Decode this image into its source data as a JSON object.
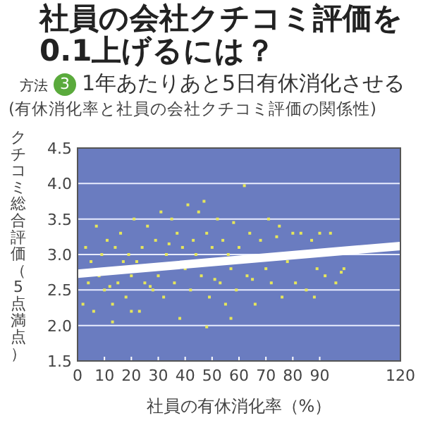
{
  "chart_data": {
    "type": "scatter",
    "title": "社員の会社クチコミ評価を0.1上げるには？",
    "subtitle": "方法 3 1年あたりあと5日有休消化させる",
    "annotations": [
      "(有休消化率と社員の会社クチコミ評価の関係性)"
    ],
    "xlabel": "社員の有休消化率（%）",
    "ylabel": "クチコミ総合評価（5点満点）",
    "xlim": [
      0,
      120
    ],
    "xticks": [
      0,
      10,
      20,
      30,
      40,
      50,
      60,
      70,
      80,
      90,
      120
    ],
    "ylim": [
      1.5,
      4.5
    ],
    "yticks": [
      1.5,
      {
        "value": 2,
        "label": "2.0"
      },
      2.5,
      {
        "value": 3,
        "label": "3.0"
      },
      3.5,
      {
        "value": 4,
        "label": "4.0"
      },
      4.5
    ],
    "grid": "y",
    "series": [
      {
        "color": "#e6e65a",
        "x": [
          2,
          3,
          4,
          5,
          6,
          7,
          8,
          9,
          10,
          11,
          12,
          13,
          14,
          15,
          16,
          17,
          18,
          19,
          20,
          21,
          22,
          23,
          24,
          25,
          26,
          27,
          28,
          29,
          30,
          31,
          32,
          33,
          34,
          35,
          36,
          37,
          38,
          39,
          40,
          41,
          42,
          43,
          44,
          45,
          46,
          47,
          48,
          49,
          50,
          51,
          52,
          53,
          54,
          55,
          56,
          57,
          58,
          59,
          60,
          62,
          63,
          64,
          65,
          66,
          68,
          70,
          71,
          72,
          74,
          75,
          76,
          78,
          80,
          81,
          83,
          85,
          87,
          88,
          89,
          90,
          92,
          94,
          96,
          98,
          99,
          48,
          13,
          57,
          20
        ],
        "values": [
          2.3,
          3.1,
          2.6,
          2.9,
          2.2,
          3.4,
          2.7,
          3.0,
          2.5,
          3.2,
          2.55,
          2.3,
          3.1,
          2.6,
          3.3,
          2.9,
          2.4,
          3.0,
          2.7,
          3.5,
          2.9,
          2.2,
          3.1,
          2.6,
          3.4,
          2.55,
          2.5,
          3.2,
          2.7,
          3.6,
          2.4,
          3.0,
          3.15,
          3.5,
          2.6,
          3.3,
          2.1,
          3.1,
          2.8,
          3.7,
          2.5,
          3.2,
          3.0,
          3.6,
          2.7,
          3.75,
          3.3,
          2.4,
          3.1,
          2.65,
          3.5,
          2.6,
          3.2,
          2.3,
          3.0,
          2.8,
          3.45,
          2.5,
          3.1,
          3.97,
          2.7,
          3.3,
          2.65,
          2.3,
          3.2,
          2.8,
          3.5,
          2.6,
          3.25,
          3.4,
          2.4,
          2.9,
          3.3,
          2.6,
          3.3,
          2.5,
          3.2,
          2.4,
          2.8,
          3.3,
          2.7,
          3.3,
          2.6,
          2.75,
          2.8,
          1.98,
          2.05,
          2.1,
          2.2
        ]
      },
      {
        "type": "line",
        "color": "#ffffff",
        "x": [
          0,
          120
        ],
        "values": [
          2.73,
          3.12
        ]
      }
    ]
  }
}
